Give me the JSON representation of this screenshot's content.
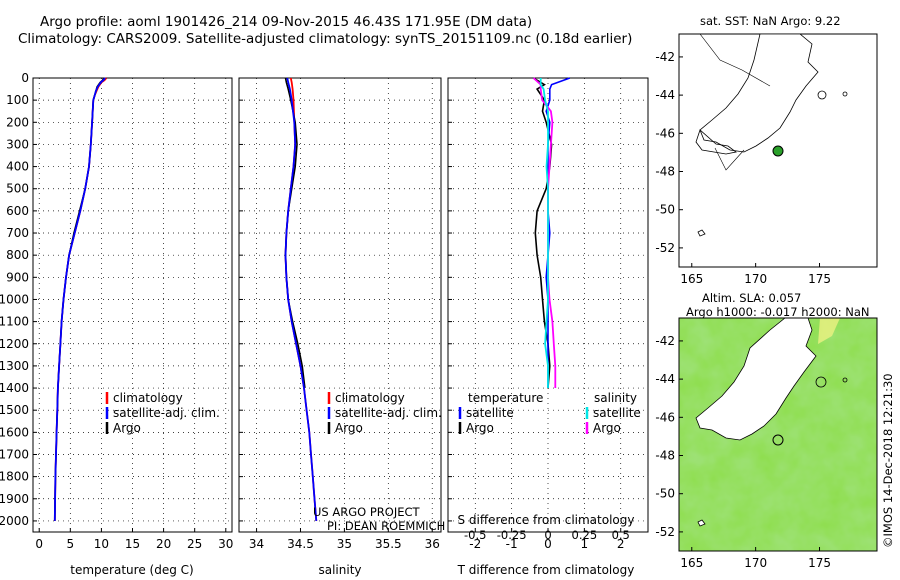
{
  "header": {
    "line1": "Argo profile: aoml 1901426_214 09-Nov-2015 46.43S 171.95E (DM data)",
    "line2": "Climatology: CARS2009. Satellite-adjusted climatology: synTS_20151109.nc (0.18d earlier)"
  },
  "colors": {
    "argo": "#000000",
    "climatology": "#ff0000",
    "satellite": "#0000ff",
    "sat_salinity": "#00e6e6",
    "argo_salinity_diff": "#ff00ff",
    "land": "#ffffff"
  },
  "chart_data": [
    {
      "type": "line",
      "id": "temperature",
      "xlabel": "temperature (deg C)",
      "ylabel": "",
      "xlim": [
        -1,
        31
      ],
      "ylim": [
        2050,
        0
      ],
      "xticks": [
        0,
        5,
        10,
        15,
        20,
        25,
        30
      ],
      "yticks": [
        0,
        100,
        200,
        300,
        400,
        500,
        600,
        700,
        800,
        900,
        1000,
        1100,
        1200,
        1300,
        1400,
        1500,
        1600,
        1700,
        1800,
        1900,
        2000
      ],
      "legend": [
        "climatology",
        "satellite-adj. clim.",
        "Argo"
      ],
      "depth": [
        0,
        10,
        20,
        40,
        60,
        80,
        100,
        200,
        300,
        400,
        500,
        600,
        700,
        800,
        900,
        1000,
        1100,
        1200,
        1300,
        1400,
        1500,
        1600,
        1700,
        1800,
        1900,
        2000
      ],
      "series": [
        {
          "name": "climatology",
          "values": [
            10.8,
            10.5,
            10.0,
            9.5,
            9.2,
            8.9,
            8.7,
            8.5,
            8.3,
            8.0,
            7.4,
            6.6,
            5.7,
            4.8,
            4.3,
            3.9,
            3.6,
            3.4,
            3.2,
            3.0,
            2.9,
            2.8,
            2.7,
            2.6,
            2.55,
            2.5
          ]
        },
        {
          "name": "satellite-adj. clim.",
          "values": [
            10.6,
            10.3,
            9.9,
            9.4,
            9.1,
            8.9,
            8.7,
            8.5,
            8.3,
            8.0,
            7.4,
            6.6,
            5.7,
            4.8,
            4.3,
            3.9,
            3.6,
            3.4,
            3.2,
            3.0,
            2.9,
            2.8,
            2.7,
            2.6,
            2.55,
            2.5
          ]
        },
        {
          "name": "Argo",
          "values": [
            10.4,
            10.2,
            9.8,
            9.3,
            9.1,
            8.9,
            8.7,
            8.5,
            8.3,
            8.0,
            7.4,
            6.5,
            5.6,
            4.8,
            4.3,
            3.9,
            3.6,
            3.4,
            3.2,
            3.0,
            2.9,
            2.8,
            2.7,
            2.6,
            2.55,
            2.5
          ]
        }
      ]
    },
    {
      "type": "line",
      "id": "salinity",
      "xlabel": "salinity",
      "xlim": [
        33.8,
        36.1
      ],
      "ylim": [
        2050,
        0
      ],
      "xticks": [
        34,
        34.5,
        35,
        35.5,
        36
      ],
      "legend": [
        "climatology",
        "satellite-adj. clim.",
        "Argo"
      ],
      "annotation": [
        "US ARGO PROJECT",
        "PI: DEAN ROEMMICH"
      ],
      "depth": [
        0,
        20,
        50,
        100,
        200,
        300,
        400,
        500,
        600,
        700,
        800,
        900,
        1000,
        1100,
        1200,
        1300,
        1400,
        1500,
        1600,
        1700,
        1800,
        1900,
        2000
      ],
      "series": [
        {
          "name": "climatology",
          "values": [
            34.39,
            34.4,
            34.41,
            34.42,
            34.43,
            34.44,
            34.42,
            34.39,
            34.36,
            34.34,
            34.33,
            34.34,
            34.36,
            34.4,
            34.45,
            34.5,
            34.54,
            34.57,
            34.6,
            34.62,
            34.64,
            34.66,
            34.68
          ]
        },
        {
          "name": "satellite-adj. clim.",
          "values": [
            34.35,
            34.36,
            34.38,
            34.4,
            34.43,
            34.44,
            34.42,
            34.39,
            34.36,
            34.34,
            34.33,
            34.34,
            34.36,
            34.4,
            34.45,
            34.5,
            34.54,
            34.57,
            34.6,
            34.62,
            34.64,
            34.66,
            34.68
          ]
        },
        {
          "name": "Argo",
          "values": [
            34.33,
            34.34,
            34.36,
            34.39,
            34.44,
            34.46,
            34.44,
            34.4,
            34.36,
            34.34,
            34.33,
            34.34,
            34.36,
            34.41,
            34.47,
            34.52,
            34.55
          ]
        }
      ]
    },
    {
      "type": "line",
      "id": "difference",
      "xlabel": "T difference from climatology",
      "xlabel_top": "S difference from climatology",
      "xlim": [
        -2.75,
        2.75
      ],
      "ylim": [
        2050,
        0
      ],
      "xticks": [
        -2,
        -1,
        0,
        1,
        2
      ],
      "xticks_S": [
        -0.5,
        -0.25,
        0,
        0.25,
        0.5
      ],
      "legend_T_title": "temperature",
      "legend_S_title": "salinity",
      "legend": [
        "satellite",
        "Argo",
        "satellite",
        "Argo"
      ],
      "depth": [
        0,
        30,
        50,
        100,
        150,
        200,
        300,
        400,
        500,
        600,
        700,
        800,
        900,
        1000,
        1100,
        1200,
        1300,
        1400
      ],
      "series": [
        {
          "name": "temperature satellite",
          "values": [
            0.6,
            0.1,
            0.05,
            0.05,
            -0.05,
            0.05,
            0.0,
            0.0,
            0.0,
            0.0,
            0.05,
            0.0,
            -0.05,
            0.0,
            0.0,
            0.0,
            0.0,
            0.0
          ]
        },
        {
          "name": "temperature Argo",
          "values": [
            -0.4,
            -0.1,
            -0.3,
            -0.1,
            -0.15,
            -0.05,
            0.1,
            0.05,
            -0.05,
            -0.3,
            -0.35,
            -0.3,
            -0.2,
            -0.15,
            -0.1,
            0.0,
            0.05,
            0.0
          ]
        },
        {
          "name": "salinity satellite",
          "values": [
            -0.05,
            -0.05,
            -0.03,
            -0.02,
            0.0,
            0.0,
            0.0,
            -0.01,
            0.0,
            0.0,
            0.0,
            0.0,
            0.0,
            0.0,
            -0.01,
            -0.02,
            0.0,
            0.0
          ]
        },
        {
          "name": "salinity Argo",
          "values": [
            -0.1,
            -0.05,
            -0.05,
            -0.04,
            0.02,
            0.03,
            0.02,
            0.01,
            0.0,
            0.0,
            0.0,
            0.0,
            0.0,
            0.01,
            0.03,
            0.04,
            0.05,
            0.05
          ]
        }
      ]
    },
    {
      "type": "map",
      "id": "sst-map",
      "title": "sat. SST: NaN Argo: 9.22",
      "xticks": [
        165,
        170,
        175
      ],
      "yticks": [
        -42,
        -44,
        -46,
        -48,
        -50,
        -52
      ],
      "xlim": [
        164,
        179.5
      ],
      "ylim": [
        -53,
        -40.8
      ],
      "marker": {
        "lon": 171.95,
        "lat": -46.43,
        "color": "#2aa02a"
      }
    },
    {
      "type": "map",
      "id": "sla-map",
      "title_line1": "Altim. SLA: 0.057",
      "title_line2": "Argo h1000: -0.017 h2000: NaN",
      "xticks": [
        165,
        170,
        175
      ],
      "yticks": [
        -42,
        -44,
        -46,
        -48,
        -50,
        -52
      ],
      "xlim": [
        164,
        179.5
      ],
      "ylim": [
        -53,
        -40.8
      ],
      "marker": {
        "lon": 171.95,
        "lat": -46.43
      },
      "credit": "©IMOS 14-Dec-2018 12:21:30"
    }
  ]
}
